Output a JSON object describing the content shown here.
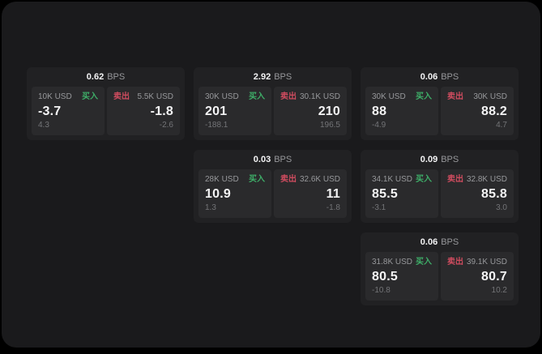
{
  "colors": {
    "page_bg": "#000000",
    "window_bg": "#1a1a1c",
    "card_bg": "#212123",
    "panel_bg": "#2a2a2c",
    "text_primary": "#f4f4f5",
    "text_secondary": "#97989b",
    "text_tertiary": "#737477",
    "buy": "#3eae68",
    "sell": "#cf4c5f"
  },
  "labels": {
    "bps_unit": "BPS",
    "buy_side": "买入",
    "sell_side": "卖出"
  },
  "cards": [
    {
      "bps_value": "0.62",
      "buy": {
        "size": "10K USD",
        "side": "买入",
        "price": "-3.7",
        "delta": "4.3"
      },
      "sell": {
        "size": "5.5K USD",
        "side": "卖出",
        "price": "-1.8",
        "delta": "-2.6"
      }
    },
    {
      "bps_value": "2.92",
      "buy": {
        "size": "30K USD",
        "side": "买入",
        "price": "201",
        "delta": "-188.1"
      },
      "sell": {
        "size": "30.1K USD",
        "side": "卖出",
        "price": "210",
        "delta": "196.5"
      }
    },
    {
      "bps_value": "0.06",
      "buy": {
        "size": "30K USD",
        "side": "买入",
        "price": "88",
        "delta": "-4.9"
      },
      "sell": {
        "size": "30K USD",
        "side": "卖出",
        "price": "88.2",
        "delta": "4.7"
      }
    },
    {
      "bps_value": "0.03",
      "buy": {
        "size": "28K USD",
        "side": "买入",
        "price": "10.9",
        "delta": "1.3"
      },
      "sell": {
        "size": "32.6K USD",
        "side": "卖出",
        "price": "11",
        "delta": "-1.8"
      }
    },
    {
      "bps_value": "0.09",
      "buy": {
        "size": "34.1K USD",
        "side": "买入",
        "price": "85.5",
        "delta": "-3.1"
      },
      "sell": {
        "size": "32.8K USD",
        "side": "卖出",
        "price": "85.8",
        "delta": "3.0"
      }
    },
    {
      "bps_value": "0.06",
      "buy": {
        "size": "31.8K USD",
        "side": "买入",
        "price": "80.5",
        "delta": "-10.8"
      },
      "sell": {
        "size": "39.1K USD",
        "side": "卖出",
        "price": "80.7",
        "delta": "10.2"
      }
    }
  ]
}
